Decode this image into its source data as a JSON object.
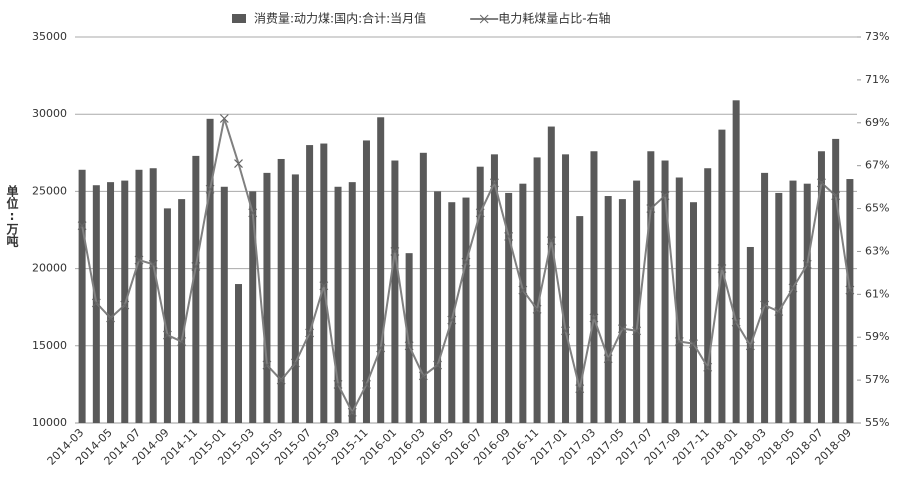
{
  "chart_data": {
    "type": "bar-line",
    "y_label": "单位:万吨",
    "categories": [
      "2014-03",
      null,
      "2014-05",
      null,
      "2014-07",
      null,
      "2014-09",
      null,
      "2014-11",
      null,
      "2015-01",
      null,
      "2015-03",
      null,
      "2015-05",
      null,
      "2015-07",
      null,
      "2015-09",
      null,
      "2015-11",
      null,
      "2016-01",
      null,
      "2016-03",
      null,
      "2016-05",
      null,
      "2016-07",
      null,
      "2016-09",
      null,
      "2016-11",
      null,
      "2017-01",
      null,
      "2017-03",
      null,
      "2017-05",
      null,
      "2017-07",
      null,
      "2017-09",
      null,
      "2017-11",
      null,
      "2018-01",
      null,
      "2018-03",
      null,
      "2018-05",
      null,
      "2018-07",
      null,
      "2018-09"
    ],
    "series": [
      {
        "name": "消费量:动力煤:国内:合计:当月值",
        "color": "#595959",
        "kind": "bar",
        "values": [
          26400,
          25400,
          25600,
          25700,
          26400,
          26500,
          23900,
          24500,
          27300,
          29700,
          25300,
          19000,
          25000,
          26200,
          27100,
          26100,
          28000,
          28100,
          25300,
          25600,
          28300,
          29800,
          27000,
          21000,
          27500,
          25000,
          24300,
          24600,
          26600,
          27400,
          24900,
          25500,
          27200,
          29200,
          27400,
          23400,
          27600,
          24700,
          24500,
          25700,
          27600,
          27000,
          25900,
          24300,
          26500,
          29000,
          30900,
          21400,
          26200,
          24900,
          25700,
          25500,
          27600,
          28400,
          25800
        ]
      },
      {
        "name": "电力耗煤量占比-右轴",
        "color": "#808080",
        "kind": "line",
        "axis": "y2",
        "values": [
          64.2,
          60.6,
          59.9,
          60.5,
          62.6,
          62.4,
          59.1,
          58.8,
          62.3,
          65.9,
          69.2,
          67.1,
          64.8,
          57.7,
          57.0,
          57.8,
          59.2,
          61.4,
          56.8,
          55.5,
          56.8,
          58.5,
          63.0,
          58.6,
          57.2,
          57.7,
          59.8,
          62.5,
          64.8,
          66.2,
          63.7,
          61.2,
          60.3,
          63.5,
          59.3,
          56.6,
          59.9,
          58.0,
          59.4,
          59.3,
          65.0,
          65.6,
          58.8,
          58.7,
          57.6,
          62.2,
          59.7,
          58.6,
          60.5,
          60.2,
          61.3,
          62.4,
          66.2,
          65.6,
          61.2
        ]
      }
    ],
    "ylim": [
      10000,
      35000
    ],
    "yticks": [
      10000,
      15000,
      20000,
      25000,
      30000,
      35000
    ],
    "y2lim": [
      55,
      73
    ],
    "y2ticks": [
      {
        "value": 55,
        "label": "55%"
      },
      {
        "value": 57,
        "label": "57%"
      },
      {
        "value": 59,
        "label": "59%"
      },
      {
        "value": 61,
        "label": "61%"
      },
      {
        "value": 63,
        "label": "63%"
      },
      {
        "value": 65,
        "label": "65%"
      },
      {
        "value": 67,
        "label": "67%"
      },
      {
        "value": 69,
        "label": "69%"
      },
      {
        "value": 71,
        "label": "71%"
      },
      {
        "value": 73,
        "label": "73%"
      }
    ],
    "grid": true,
    "legend": "top"
  }
}
